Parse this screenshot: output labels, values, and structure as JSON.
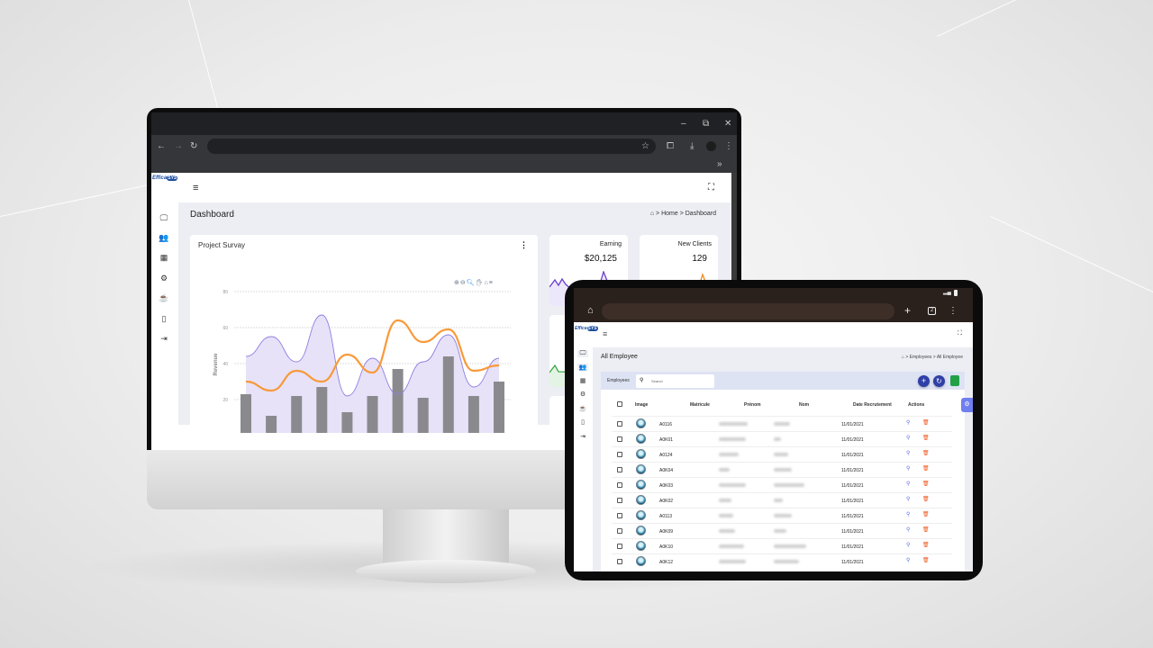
{
  "monitor": {
    "browser": {
      "bookmarks_overflow": "»",
      "window_controls": [
        "minimize-icon",
        "restore-icon",
        "close-icon"
      ]
    },
    "header": {
      "logo": "EfficaSYS"
    },
    "page_title": "Dashboard",
    "breadcrumb": {
      "home": "Home",
      "current": "Dashboard",
      "separator": ">"
    },
    "sidebar_icons": [
      "monitor-icon",
      "users-icon",
      "table-icon",
      "settings-icon",
      "coffee-icon",
      "book-icon",
      "logout-icon"
    ],
    "survey_card": {
      "title": "Project Survay",
      "menu": "⋮"
    },
    "stats": [
      {
        "label": "Earning",
        "value": "$20,125",
        "color": "#6a3fd0"
      },
      {
        "label": "New Clients",
        "value": "129",
        "color": "#f08a24"
      }
    ],
    "colors": {
      "bars": "#8a8a8e",
      "area_line": "#8f7ee0",
      "area_fill": "#e7e2f8",
      "orange_line": "#f89a3a"
    }
  },
  "chart_data": {
    "type": "bar",
    "ylabel": "Revenue",
    "yticks": [
      20,
      40,
      60,
      80
    ],
    "grid": true,
    "series": [
      {
        "type": "bar",
        "values": [
          23,
          11,
          22,
          27,
          13,
          22,
          37,
          21,
          44,
          22,
          30
        ]
      },
      {
        "type": "area",
        "values": [
          44,
          55,
          41,
          67,
          22,
          43,
          23,
          41,
          56,
          27,
          43
        ]
      },
      {
        "type": "line",
        "values": [
          30,
          25,
          36,
          30,
          45,
          35,
          64,
          52,
          59,
          36,
          39
        ]
      }
    ]
  },
  "tablet": {
    "status": {
      "signal": "signal-icon",
      "battery": "battery-icon"
    },
    "browser": {
      "tab_count": "2"
    },
    "header": {
      "logo": "EfficaSYS"
    },
    "page_title": "All Employee",
    "breadcrumb": {
      "section": "Employees",
      "current": "All Employee",
      "separator": ">"
    },
    "toolbar": {
      "label": "Employees",
      "search_placeholder": "Search"
    },
    "columns": [
      "Image",
      "Matricule",
      "Prénom",
      "Nom",
      "Date Recrutement",
      "Actions"
    ],
    "rows": [
      {
        "matricule": "A0116",
        "date": "11/01/2021"
      },
      {
        "matricule": "A0K01",
        "date": "11/01/2021"
      },
      {
        "matricule": "A0124",
        "date": "11/01/2021"
      },
      {
        "matricule": "A0K04",
        "date": "11/01/2021"
      },
      {
        "matricule": "A0K03",
        "date": "11/01/2021"
      },
      {
        "matricule": "A0K02",
        "date": "11/01/2021"
      },
      {
        "matricule": "A0113",
        "date": "11/01/2021"
      },
      {
        "matricule": "A0K09",
        "date": "11/01/2021"
      },
      {
        "matricule": "A0K10",
        "date": "11/01/2021"
      },
      {
        "matricule": "A0K12",
        "date": "11/01/2021"
      }
    ],
    "colors": {
      "primary": "#2f3fa8",
      "view": "#5a6be8",
      "delete": "#f0581c",
      "float": "#6f7ff0"
    }
  }
}
